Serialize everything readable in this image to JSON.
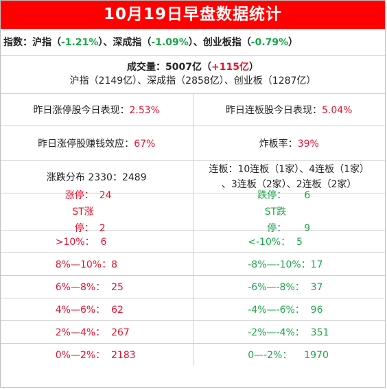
{
  "title": "10月19日早盘数据统计",
  "indices": {
    "label": "指数：",
    "sh_name": "沪指",
    "sh_change": "-1.21%",
    "sz_name": "深成指",
    "sz_change": "-1.09%",
    "cy_name": "创业板指",
    "cy_change": "-0.79%",
    "lp": "（",
    "rp": "）",
    "sep": "、"
  },
  "volume": {
    "label": "成交量：5007亿",
    "change": "+115亿",
    "detail": "沪指（2149亿）、深成指（2858亿）、创业板（1287亿）"
  },
  "indicators": {
    "limit_up_today_label": "昨日涨停股今日表现：",
    "limit_up_today_value": "2.53%",
    "consecutive_today_label": "昨日连板股今日表现：",
    "consecutive_today_value": "5.04%",
    "money_effect_label": "昨日涨停股赚钱效应：",
    "money_effect_value": "67%",
    "broken_rate_label": "炸板率：",
    "broken_rate_value": "39%"
  },
  "distribution": {
    "text": "涨跌分布 2330：2489",
    "consecutive_line1": "连板：10连板（1家）、4连板（1家）",
    "consecutive_line2": "、3连板（2家）、2连板（2家）"
  },
  "limits": {
    "up_label": "涨停：",
    "up_value": "24",
    "st_up_label": "ST涨停：",
    "st_up_value": "2",
    "down_label": "跌停：",
    "down_value": "6",
    "st_down_label": "ST跌停：",
    "st_down_value": "9"
  },
  "buckets": [
    {
      "up": ">10%：  6",
      "down": "<-10%：  5"
    },
    {
      "up": "8%—10%：8",
      "down": "-8%—-10%：17"
    },
    {
      "up": "6%—8%：  25",
      "down": "-6%—-8%：  37"
    },
    {
      "up": "4%—6%：  62",
      "down": "-4%—-6%：  96"
    },
    {
      "up": "2%—4%：  267",
      "down": "-2%—-4%：  351"
    },
    {
      "up": "0%—2%：  2183",
      "down": "0—-2%：    1970"
    }
  ],
  "colors": {
    "title_bg": "#ff0000",
    "up": "#e8112d",
    "down": "#1aa54a"
  }
}
